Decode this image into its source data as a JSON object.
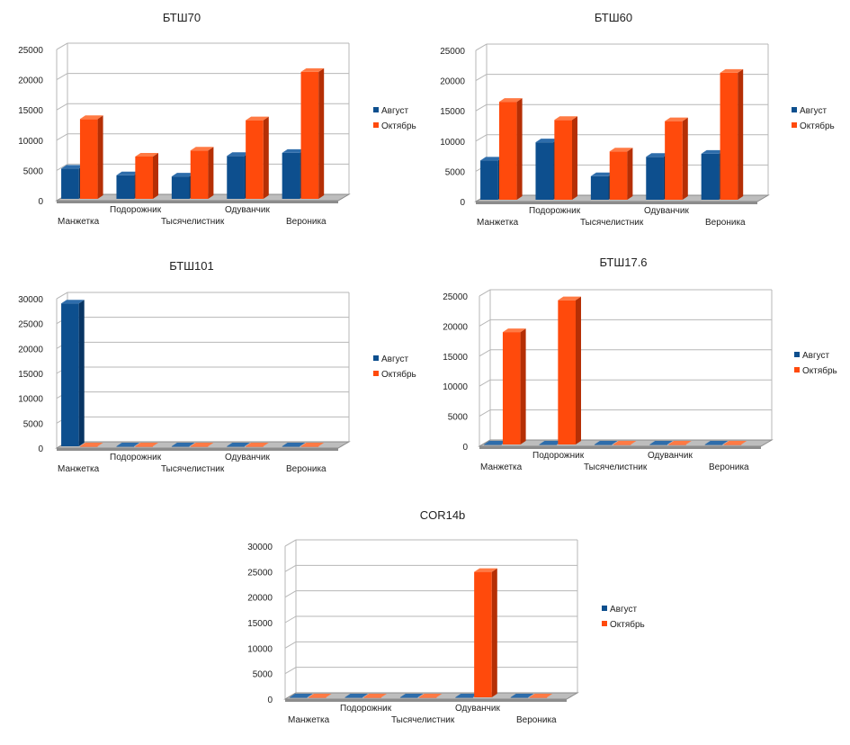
{
  "colors": {
    "august": "#0d4f8e",
    "august_side": "#083563",
    "august_top": "#2e6dab",
    "october": "#ff4a0c",
    "october_side": "#b52f05",
    "october_top": "#ff7a44",
    "grid": "#b7b7b7",
    "floor": "#8c8c8c",
    "floor_top": "#bdbdbd"
  },
  "chart_data": [
    {
      "type": "bar",
      "title": "БТШ70",
      "categories": [
        "Манжетка",
        "Подорожник",
        "Тысячелистник",
        "Одуванчик",
        "Вероника"
      ],
      "series": [
        {
          "name": "Август",
          "values": [
            5000,
            3900,
            3700,
            7100,
            7600
          ]
        },
        {
          "name": "Октябрь",
          "values": [
            13200,
            7000,
            8000,
            13000,
            21000
          ]
        }
      ],
      "ylim": [
        0,
        25000
      ],
      "yticks": [
        "0",
        "5000",
        "10000",
        "15000",
        "20000",
        "25000"
      ],
      "legend": "right"
    },
    {
      "type": "bar",
      "title": "БТШ60",
      "categories": [
        "Манжетка",
        "Подорожник",
        "Тысячелистник",
        "Одуванчик",
        "Вероника"
      ],
      "series": [
        {
          "name": "Август",
          "values": [
            6500,
            9500,
            3900,
            7100,
            7600
          ]
        },
        {
          "name": "Октябрь",
          "values": [
            16200,
            13200,
            8000,
            13000,
            21000
          ]
        }
      ],
      "ylim": [
        0,
        25000
      ],
      "yticks": [
        "0",
        "5000",
        "10000",
        "15000",
        "20000",
        "25000"
      ],
      "legend": "right"
    },
    {
      "type": "bar",
      "title": "БТШ101",
      "categories": [
        "Манжетка",
        "Подорожник",
        "Тысячелистник",
        "Одуванчик",
        "Вероника"
      ],
      "series": [
        {
          "name": "Август",
          "values": [
            28700,
            0,
            0,
            0,
            0
          ]
        },
        {
          "name": "Октябрь",
          "values": [
            0,
            0,
            0,
            0,
            0
          ]
        }
      ],
      "ylim": [
        0,
        30000
      ],
      "yticks": [
        "0",
        "5000",
        "10000",
        "15000",
        "20000",
        "25000",
        "30000"
      ],
      "legend": "right"
    },
    {
      "type": "bar",
      "title": "БТШ17.6",
      "categories": [
        "Манжетка",
        "Подорожник",
        "Тысячелистник",
        "Одуванчик",
        "Вероника"
      ],
      "series": [
        {
          "name": "Август",
          "values": [
            0,
            0,
            0,
            0,
            0
          ]
        },
        {
          "name": "Октябрь",
          "values": [
            18700,
            24000,
            0,
            0,
            0
          ]
        }
      ],
      "ylim": [
        0,
        25000
      ],
      "yticks": [
        "0",
        "5000",
        "10000",
        "15000",
        "20000",
        "25000"
      ],
      "legend": "right"
    },
    {
      "type": "bar",
      "title": "COR14b",
      "categories": [
        "Манжетка",
        "Подорожник",
        "Тысячелистник",
        "Одуванчик",
        "Вероника"
      ],
      "series": [
        {
          "name": "Август",
          "values": [
            0,
            0,
            0,
            0,
            0
          ]
        },
        {
          "name": "Октябрь",
          "values": [
            0,
            0,
            0,
            24600,
            0
          ]
        }
      ],
      "ylim": [
        0,
        30000
      ],
      "yticks": [
        "0",
        "5000",
        "10000",
        "15000",
        "20000",
        "25000",
        "30000"
      ],
      "legend": "right"
    }
  ]
}
